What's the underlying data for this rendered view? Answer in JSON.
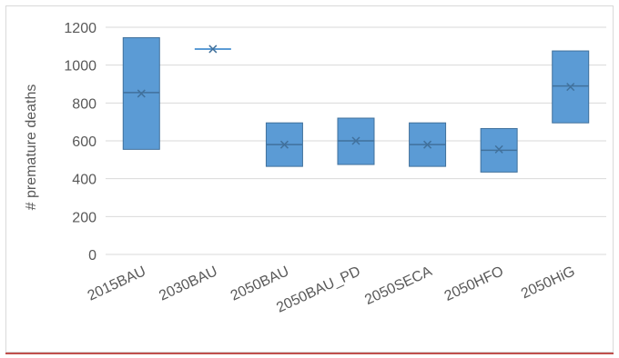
{
  "chart_data": {
    "type": "box",
    "title": "",
    "xlabel": "",
    "ylabel": "# premature deaths",
    "ylim": [
      0,
      1200
    ],
    "yticks": [
      0,
      200,
      400,
      600,
      800,
      1000,
      1200
    ],
    "grid": true,
    "legend": "none",
    "categories": [
      "2015BAU",
      "2030BAU",
      "2050BAU",
      "2050BAU_PD",
      "2050SECA",
      "2050HFO",
      "2050HiG"
    ],
    "boxes": [
      {
        "category": "2015BAU",
        "min": 555,
        "median": 855,
        "mean": 850,
        "max": 1145
      },
      {
        "category": "2030BAU",
        "min": 1085,
        "median": 1085,
        "mean": 1085,
        "max": 1085
      },
      {
        "category": "2050BAU",
        "min": 465,
        "median": 580,
        "mean": 580,
        "max": 695
      },
      {
        "category": "2050BAU_PD",
        "min": 475,
        "median": 600,
        "mean": 600,
        "max": 720
      },
      {
        "category": "2050SECA",
        "min": 465,
        "median": 580,
        "mean": 580,
        "max": 695
      },
      {
        "category": "2050HFO",
        "min": 435,
        "median": 550,
        "mean": 555,
        "max": 665
      },
      {
        "category": "2050HiG",
        "min": 695,
        "median": 890,
        "mean": 885,
        "max": 1075
      }
    ],
    "colors": {
      "box_fill": "#5b9bd5",
      "box_stroke": "#41719c",
      "grid": "#d9d9d9",
      "text": "#595959",
      "accent_rule": "#c0504d"
    }
  }
}
